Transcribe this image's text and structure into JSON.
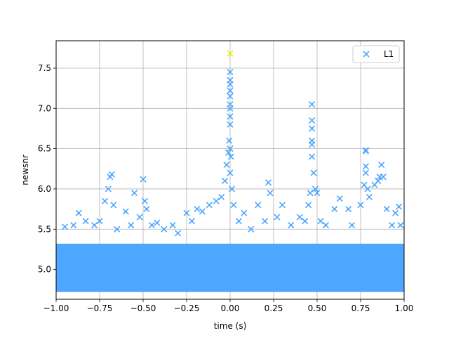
{
  "chart_data": {
    "type": "scatter",
    "title": "",
    "xlabel": "time (s)",
    "ylabel": "newsnr",
    "xlim": [
      -1.0,
      1.0
    ],
    "ylim": [
      4.63,
      7.84
    ],
    "grid": true,
    "x_ticks": [
      -1.0,
      -0.75,
      -0.5,
      -0.25,
      0.0,
      0.25,
      0.5,
      0.75,
      1.0
    ],
    "x_tick_labels": [
      "−1.00",
      "−0.75",
      "−0.50",
      "−0.25",
      "0.00",
      "0.25",
      "0.50",
      "0.75",
      "1.00"
    ],
    "y_ticks": [
      5.0,
      5.5,
      6.0,
      6.5,
      7.0,
      7.5
    ],
    "y_tick_labels": [
      "5.0",
      "5.5",
      "6.0",
      "6.5",
      "7.0",
      "7.5"
    ],
    "legend": {
      "position": "top-right",
      "entries": [
        "L1"
      ]
    },
    "marker": "x",
    "series": [
      {
        "name": "L1",
        "color": "#4da6ff",
        "background_band": {
          "x_range": [
            -1.0,
            1.0
          ],
          "y_range": [
            4.72,
            5.32
          ]
        },
        "x": [
          -0.95,
          -0.9,
          -0.87,
          -0.83,
          -0.78,
          -0.75,
          -0.72,
          -0.7,
          -0.69,
          -0.68,
          -0.67,
          -0.65,
          -0.6,
          -0.57,
          -0.55,
          -0.52,
          -0.5,
          -0.49,
          -0.48,
          -0.45,
          -0.42,
          -0.38,
          -0.33,
          -0.3,
          -0.25,
          -0.22,
          -0.19,
          -0.16,
          -0.12,
          -0.08,
          -0.05,
          -0.03,
          -0.02,
          -0.01,
          -0.005,
          0.0,
          0.0,
          0.0,
          0.0,
          0.0,
          0.0,
          0.0,
          0.0,
          0.0,
          0.0,
          0.0,
          0.005,
          0.01,
          0.02,
          0.05,
          0.08,
          0.12,
          0.16,
          0.2,
          0.22,
          0.23,
          0.27,
          0.3,
          0.35,
          0.4,
          0.43,
          0.45,
          0.46,
          0.47,
          0.47,
          0.47,
          0.47,
          0.47,
          0.47,
          0.48,
          0.49,
          0.5,
          0.52,
          0.55,
          0.6,
          0.63,
          0.68,
          0.7,
          0.75,
          0.77,
          0.78,
          0.78,
          0.78,
          0.78,
          0.79,
          0.8,
          0.83,
          0.85,
          0.86,
          0.87,
          0.88,
          0.9,
          0.93,
          0.95,
          0.97,
          0.98
        ],
        "y": [
          5.53,
          5.55,
          5.7,
          5.6,
          5.55,
          5.6,
          5.85,
          6.0,
          6.15,
          6.18,
          5.8,
          5.5,
          5.72,
          5.55,
          5.95,
          5.65,
          6.12,
          5.85,
          5.75,
          5.55,
          5.58,
          5.5,
          5.55,
          5.45,
          5.7,
          5.6,
          5.75,
          5.72,
          5.8,
          5.85,
          5.9,
          6.1,
          6.3,
          6.45,
          6.6,
          6.8,
          6.9,
          7.0,
          7.05,
          7.15,
          7.22,
          7.3,
          7.35,
          7.45,
          6.5,
          6.2,
          6.4,
          6.0,
          5.8,
          5.6,
          5.7,
          5.5,
          5.8,
          5.6,
          6.08,
          5.95,
          5.65,
          5.8,
          5.55,
          5.65,
          5.6,
          5.8,
          5.95,
          6.55,
          6.6,
          6.75,
          6.85,
          7.05,
          6.4,
          6.2,
          6.0,
          5.95,
          5.6,
          5.55,
          5.75,
          5.88,
          5.75,
          5.55,
          5.8,
          6.05,
          6.2,
          6.28,
          6.48,
          6.47,
          6.0,
          5.9,
          6.05,
          6.1,
          6.15,
          6.3,
          6.15,
          5.75,
          5.55,
          5.7,
          5.78,
          5.55
        ]
      },
      {
        "name": "",
        "color": "#e8f000",
        "x": [
          0.0
        ],
        "y": [
          7.68
        ]
      }
    ]
  }
}
